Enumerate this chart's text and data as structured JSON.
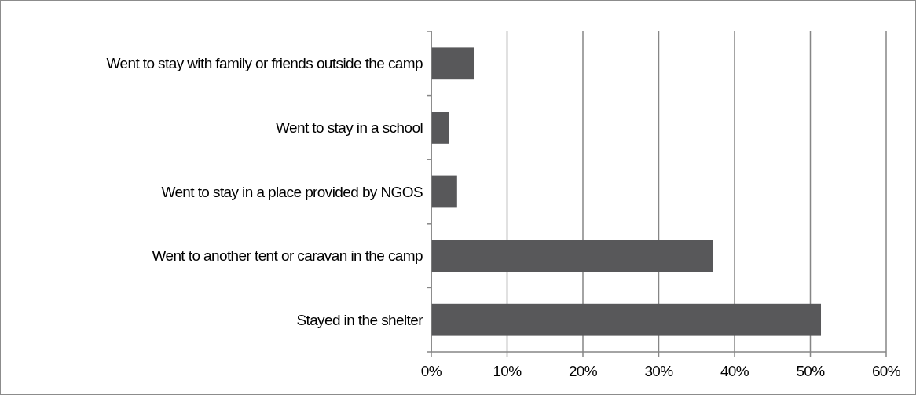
{
  "chart_data": {
    "type": "bar",
    "orientation": "horizontal",
    "categories": [
      "Went to stay with family or friends outside the camp",
      "Went to stay in a school",
      "Went to stay in a place provided by NGOS",
      "Went to another tent or caravan in the camp",
      "Stayed in the shelter"
    ],
    "values": [
      5.7,
      2.3,
      3.4,
      37.1,
      51.4
    ],
    "color": "#58585a",
    "xlim": [
      0,
      60
    ],
    "xticks": [
      {
        "value": 0,
        "label": "0%"
      },
      {
        "value": 10,
        "label": "10%"
      },
      {
        "value": 20,
        "label": "20%"
      },
      {
        "value": 30,
        "label": "30%"
      },
      {
        "value": 40,
        "label": "40%"
      },
      {
        "value": 50,
        "label": "50%"
      },
      {
        "value": 60,
        "label": "60%"
      }
    ],
    "grid": "x"
  }
}
